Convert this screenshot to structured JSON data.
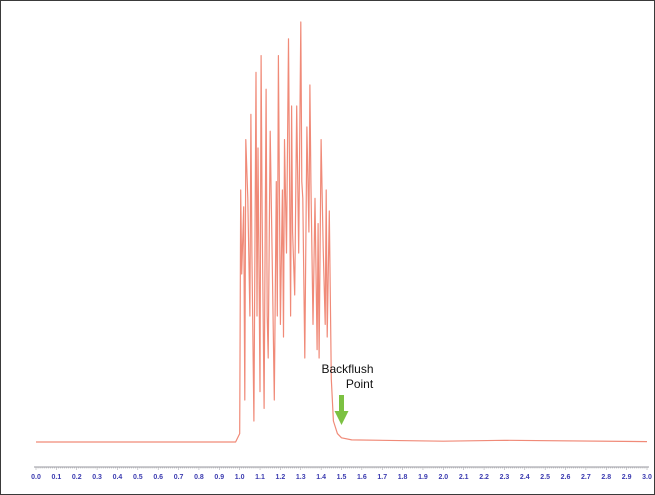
{
  "chart_data": {
    "type": "line",
    "title": "",
    "xlabel": "",
    "ylabel": "",
    "xlim": [
      0.0,
      3.0
    ],
    "grid": false,
    "legend": "none",
    "x_tick_labels": [
      "0.0",
      "0.1",
      "0.2",
      "0.3",
      "0.4",
      "0.5",
      "0.6",
      "0.7",
      "0.8",
      "0.9",
      "1.0",
      "1.1",
      "1.2",
      "1.3",
      "1.4",
      "1.5",
      "1.6",
      "1.7",
      "1.8",
      "1.9",
      "2.0",
      "2.1",
      "2.2",
      "2.3",
      "2.4",
      "2.5",
      "2.6",
      "2.7",
      "2.8",
      "2.9",
      "3.0"
    ],
    "series": [
      {
        "color": "#f08a78",
        "x": [
          0.0,
          0.98,
          1.0,
          1.005,
          1.01,
          1.02,
          1.025,
          1.03,
          1.04,
          1.05,
          1.055,
          1.06,
          1.07,
          1.08,
          1.085,
          1.09,
          1.1,
          1.105,
          1.11,
          1.12,
          1.13,
          1.135,
          1.14,
          1.15,
          1.16,
          1.17,
          1.18,
          1.185,
          1.19,
          1.2,
          1.21,
          1.215,
          1.22,
          1.23,
          1.24,
          1.25,
          1.255,
          1.26,
          1.27,
          1.28,
          1.29,
          1.3,
          1.305,
          1.31,
          1.32,
          1.33,
          1.34,
          1.345,
          1.35,
          1.36,
          1.37,
          1.38,
          1.385,
          1.39,
          1.4,
          1.41,
          1.42,
          1.425,
          1.43,
          1.44,
          1.45,
          1.46,
          1.48,
          1.5,
          1.55,
          2.0,
          2.3,
          3.0
        ],
        "y": [
          0.0,
          0.0,
          0.02,
          0.6,
          0.4,
          0.56,
          0.1,
          0.72,
          0.58,
          0.3,
          0.78,
          0.45,
          0.05,
          0.88,
          0.3,
          0.7,
          0.12,
          0.92,
          0.55,
          0.08,
          0.84,
          0.3,
          0.2,
          0.74,
          0.42,
          0.1,
          0.62,
          0.3,
          0.92,
          0.28,
          0.6,
          0.25,
          0.72,
          0.45,
          0.96,
          0.3,
          0.8,
          0.5,
          0.35,
          0.8,
          0.45,
          1.0,
          0.62,
          0.58,
          0.2,
          0.75,
          0.5,
          0.85,
          0.62,
          0.28,
          0.58,
          0.22,
          0.52,
          0.2,
          0.72,
          0.46,
          0.28,
          0.6,
          0.25,
          0.55,
          0.15,
          0.05,
          0.02,
          0.01,
          0.005,
          0.002,
          0.004,
          0.001
        ]
      }
    ],
    "annotations": [
      {
        "text_line1": "Backflush",
        "text_line2": "Point",
        "x": 1.5,
        "arrow_color": "#7cc142"
      }
    ]
  }
}
